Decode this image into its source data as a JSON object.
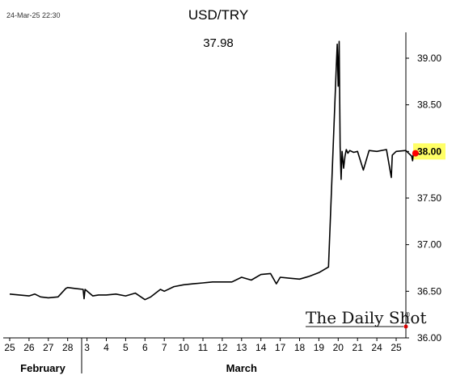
{
  "timestamp": "24-Mar-25 22:30",
  "brand": {
    "name": "The Daily Shot",
    "mark": "®"
  },
  "chart_data": {
    "type": "line",
    "title": "USD/TRY",
    "last_value_text": "37.98",
    "last_value_badge": "38.00",
    "ylim": [
      36.0,
      39.2
    ],
    "y_ticks": [
      "36.00",
      "36.50",
      "37.00",
      "37.50",
      "38.00",
      "38.50",
      "39.00"
    ],
    "grid": false,
    "x_ticks": [
      "25",
      "26",
      "27",
      "28",
      "3",
      "4",
      "5",
      "6",
      "7",
      "10",
      "11",
      "12",
      "13",
      "14",
      "17",
      "18",
      "19",
      "20",
      "21",
      "24",
      "25"
    ],
    "x_groups": [
      {
        "label": "February",
        "ticks": [
          "25",
          "26",
          "27",
          "28"
        ]
      },
      {
        "label": "March",
        "ticks": [
          "3",
          "4",
          "5",
          "6",
          "7",
          "10",
          "11",
          "12",
          "13",
          "14",
          "17",
          "18",
          "19",
          "20",
          "21",
          "24",
          "25"
        ]
      }
    ],
    "series": [
      {
        "color": "#000000",
        "x": [
          0,
          0.5,
          1,
          1.3,
          1.6,
          2,
          2.5,
          2.9,
          3,
          3.4,
          3.8,
          3.85,
          3.9,
          4.3,
          4.6,
          5,
          5.5,
          6,
          6.5,
          7,
          7.3,
          7.8,
          8,
          8.5,
          9,
          9.5,
          10,
          10.5,
          11,
          11.5,
          12,
          12.5,
          13,
          13.5,
          13.8,
          14,
          14.5,
          15,
          15.5,
          16,
          16.5,
          16.9,
          16.95,
          17.0,
          17.05,
          17.1,
          17.15,
          17.2,
          17.28,
          17.35,
          17.42,
          17.5,
          17.6,
          17.8,
          18,
          18.3,
          18.6,
          19,
          19.5,
          19.75,
          19.8,
          20,
          20.5,
          20.8,
          20.85,
          20.9,
          21.0
        ],
        "y": [
          36.47,
          36.46,
          36.45,
          36.47,
          36.44,
          36.43,
          36.44,
          36.53,
          36.54,
          36.53,
          36.52,
          36.42,
          36.52,
          36.45,
          36.46,
          36.46,
          36.47,
          36.45,
          36.48,
          36.41,
          36.44,
          36.52,
          36.5,
          36.55,
          36.57,
          36.58,
          36.59,
          36.6,
          36.6,
          36.6,
          36.65,
          36.62,
          36.68,
          36.69,
          36.58,
          36.65,
          36.64,
          36.63,
          36.66,
          36.7,
          36.76,
          38.9,
          39.15,
          38.7,
          39.18,
          38.05,
          37.7,
          38.0,
          37.82,
          37.95,
          38.02,
          37.98,
          38.01,
          37.99,
          38.0,
          37.8,
          38.01,
          38.0,
          38.02,
          37.72,
          37.96,
          38.0,
          38.01,
          37.95,
          37.9,
          38.0,
          37.98
        ]
      }
    ],
    "last_point": {
      "x": 21.0,
      "y": 37.98,
      "color": "#ff0000"
    },
    "badge_color": "#ffff66"
  }
}
